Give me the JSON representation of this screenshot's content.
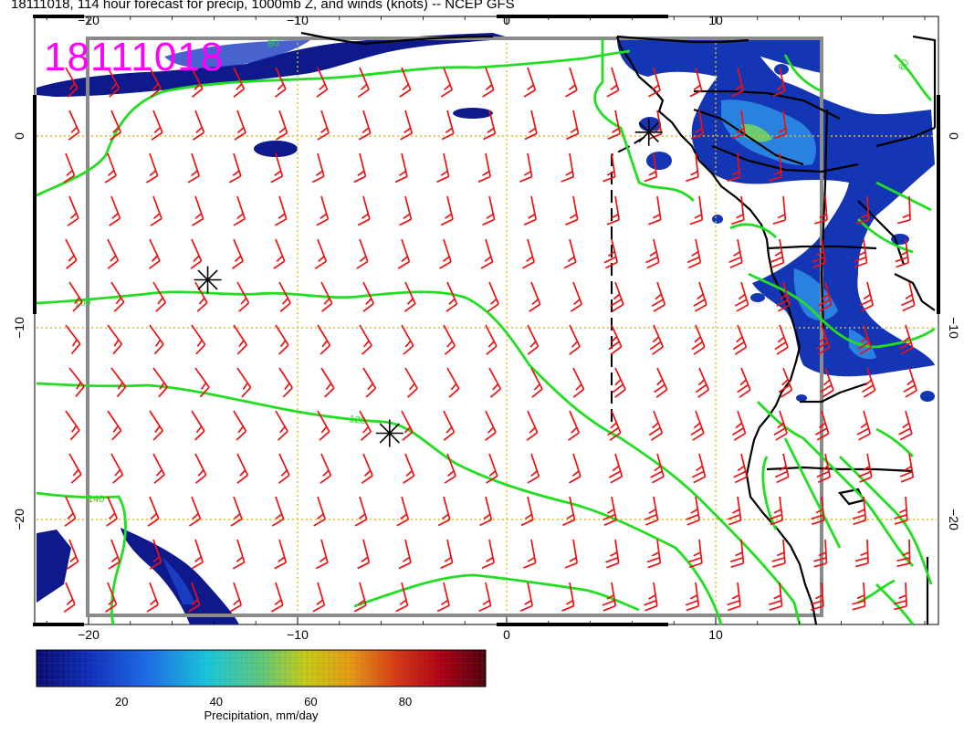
{
  "title": "18111018, 114 hour forecast for precip, 1000mb Z, and winds (knots) -- NCEP GFS",
  "stamp": "18111018",
  "colors": {
    "contour": "#22dd22",
    "barb": "#ee1111",
    "gridline": "#ddbb22",
    "stamp": "#ff00ff",
    "precip_low": "#0a1a8a"
  },
  "axes": {
    "x_ticks": [
      {
        "lon": -20,
        "label": "−20"
      },
      {
        "lon": -10,
        "label": "−10"
      },
      {
        "lon": 0,
        "label": "0"
      },
      {
        "lon": 10,
        "label": "10"
      }
    ],
    "y_ticks": [
      {
        "lat": 0,
        "label": "0"
      },
      {
        "lat": -10,
        "label": "−10"
      },
      {
        "lat": -20,
        "label": "−20"
      }
    ]
  },
  "contours": [
    {
      "label": "100"
    },
    {
      "label": "120"
    },
    {
      "label": "140"
    },
    {
      "label": "80"
    },
    {
      "label": "60"
    }
  ],
  "pressure_centers": [
    {
      "name": "high-a",
      "lon": -14.3,
      "lat": -7.5
    },
    {
      "name": "high-b",
      "lon": -5.6,
      "lat": -15.5
    },
    {
      "name": "low-c",
      "lon": 6.8,
      "lat": 0.2
    }
  ],
  "colorbar": {
    "label": "Precipitation, mm/day",
    "ticks": [
      {
        "value": 20,
        "label": "20"
      },
      {
        "value": 40,
        "label": "40"
      },
      {
        "value": 60,
        "label": "60"
      },
      {
        "value": 80,
        "label": "80"
      }
    ],
    "range": [
      2,
      97
    ]
  }
}
